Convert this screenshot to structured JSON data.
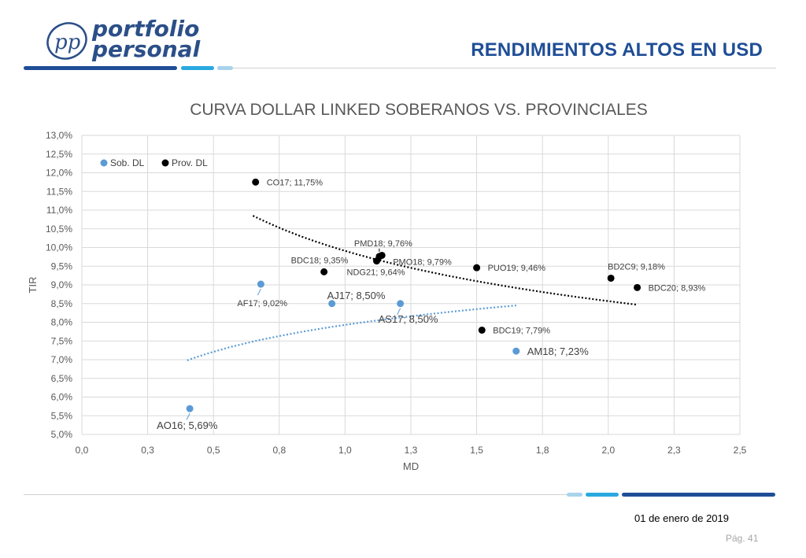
{
  "header": {
    "brand_line1": "portfolio",
    "brand_line2": "personal",
    "logo_monogram": "pp",
    "slide_title": "RENDIMIENTOS ALTOS EN USD"
  },
  "colors": {
    "brand_dark": "#1f4e96",
    "brand_light": "#29a9e0",
    "brand_pale": "#a9d3ec",
    "series_sob": "#5b9bd5",
    "series_prov": "#000000"
  },
  "footer": {
    "date": "01 de enero de 2019",
    "page": "Pág. 41"
  },
  "chart_data": {
    "type": "scatter",
    "title": "CURVA  DOLLAR LINKED SOBERANOS VS. PROVINCIALES",
    "xlabel": "MD",
    "ylabel": "TIR",
    "xlim": [
      0,
      2.5
    ],
    "ylim": [
      5.0,
      13.0
    ],
    "grid": true,
    "legend_position": "top-left",
    "x_ticks": [
      "0,0",
      "0,3",
      "0,5",
      "0,8",
      "1,0",
      "1,3",
      "1,5",
      "1,8",
      "2,0",
      "2,3",
      "2,5"
    ],
    "y_ticks": [
      "5,0%",
      "5,5%",
      "6,0%",
      "6,5%",
      "7,0%",
      "7,5%",
      "8,0%",
      "8,5%",
      "9,0%",
      "9,5%",
      "10,0%",
      "10,5%",
      "11,0%",
      "11,5%",
      "12,0%",
      "12,5%",
      "13,0%"
    ],
    "series": [
      {
        "name": "Sob. DL",
        "color": "#5b9bd5",
        "points": [
          {
            "label": "AO16; 5,69%",
            "x": 0.41,
            "y": 5.69
          },
          {
            "label": "AF17; 9,02%",
            "x": 0.68,
            "y": 9.02
          },
          {
            "label": "AJ17; 8,50%",
            "x": 0.95,
            "y": 8.5
          },
          {
            "label": "AS17; 8,50%",
            "x": 1.21,
            "y": 8.5
          },
          {
            "label": "AM18; 7,23%",
            "x": 1.65,
            "y": 7.23
          }
        ],
        "trend": {
          "type": "log",
          "from_x": 0.4,
          "to_x": 1.65,
          "y_start": 6.98,
          "y_end": 8.45
        }
      },
      {
        "name": "Prov. DL",
        "color": "#000000",
        "points": [
          {
            "label": "CO17; 11,75%",
            "x": 0.66,
            "y": 11.75
          },
          {
            "label": "BDC18; 9,35%",
            "x": 0.92,
            "y": 9.35
          },
          {
            "label": "NDG21; 9,64%",
            "x": 1.12,
            "y": 9.64
          },
          {
            "label": "PMD18; 9,76%",
            "x": 1.13,
            "y": 9.76
          },
          {
            "label": "PMO18; 9,79%",
            "x": 1.14,
            "y": 9.79
          },
          {
            "label": "PUO19; 9,46%",
            "x": 1.5,
            "y": 9.46
          },
          {
            "label": "BDC19; 7,79%",
            "x": 1.52,
            "y": 7.79
          },
          {
            "label": "BD2C9; 9,18%",
            "x": 2.01,
            "y": 9.18
          },
          {
            "label": "BDC20; 8,93%",
            "x": 2.11,
            "y": 8.93
          }
        ],
        "trend": {
          "type": "power",
          "from_x": 0.65,
          "to_x": 2.11,
          "y_start": 10.85,
          "y_end": 8.47
        }
      }
    ]
  }
}
